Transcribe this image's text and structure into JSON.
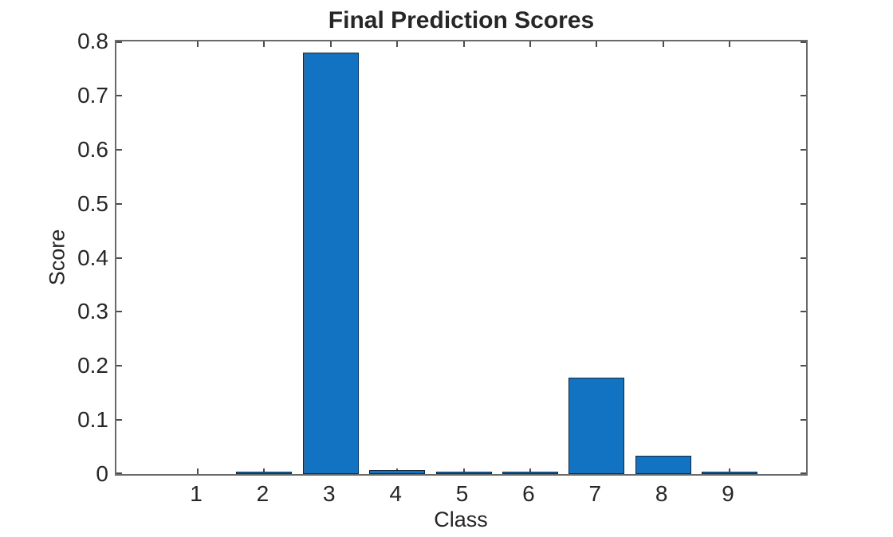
{
  "chart_data": {
    "type": "bar",
    "title": "Final Prediction Scores",
    "xlabel": "Class",
    "ylabel": "Score",
    "categories": [
      "1",
      "2",
      "3",
      "4",
      "5",
      "6",
      "7",
      "8",
      "9"
    ],
    "values": [
      0,
      0.001,
      0.779,
      0.006,
      0.001,
      0.001,
      0.178,
      0.033,
      0.003
    ],
    "ylim": [
      0,
      0.8
    ],
    "yticks": [
      0,
      0.1,
      0.2,
      0.3,
      0.4,
      0.5,
      0.6,
      0.7,
      0.8
    ],
    "ytick_labels": [
      "0",
      "0.1",
      "0.2",
      "0.3",
      "0.4",
      "0.5",
      "0.6",
      "0.7",
      "0.8"
    ],
    "grid": false,
    "legend": null,
    "tick_direction": "in",
    "box": true,
    "colors": {
      "bar_face": "#1173c2",
      "bar_edge": "#16293c",
      "box_line": "#6a6a6a",
      "tick_mark": "#4d4d4d",
      "text": "#262626",
      "background": "#ffffff"
    }
  }
}
